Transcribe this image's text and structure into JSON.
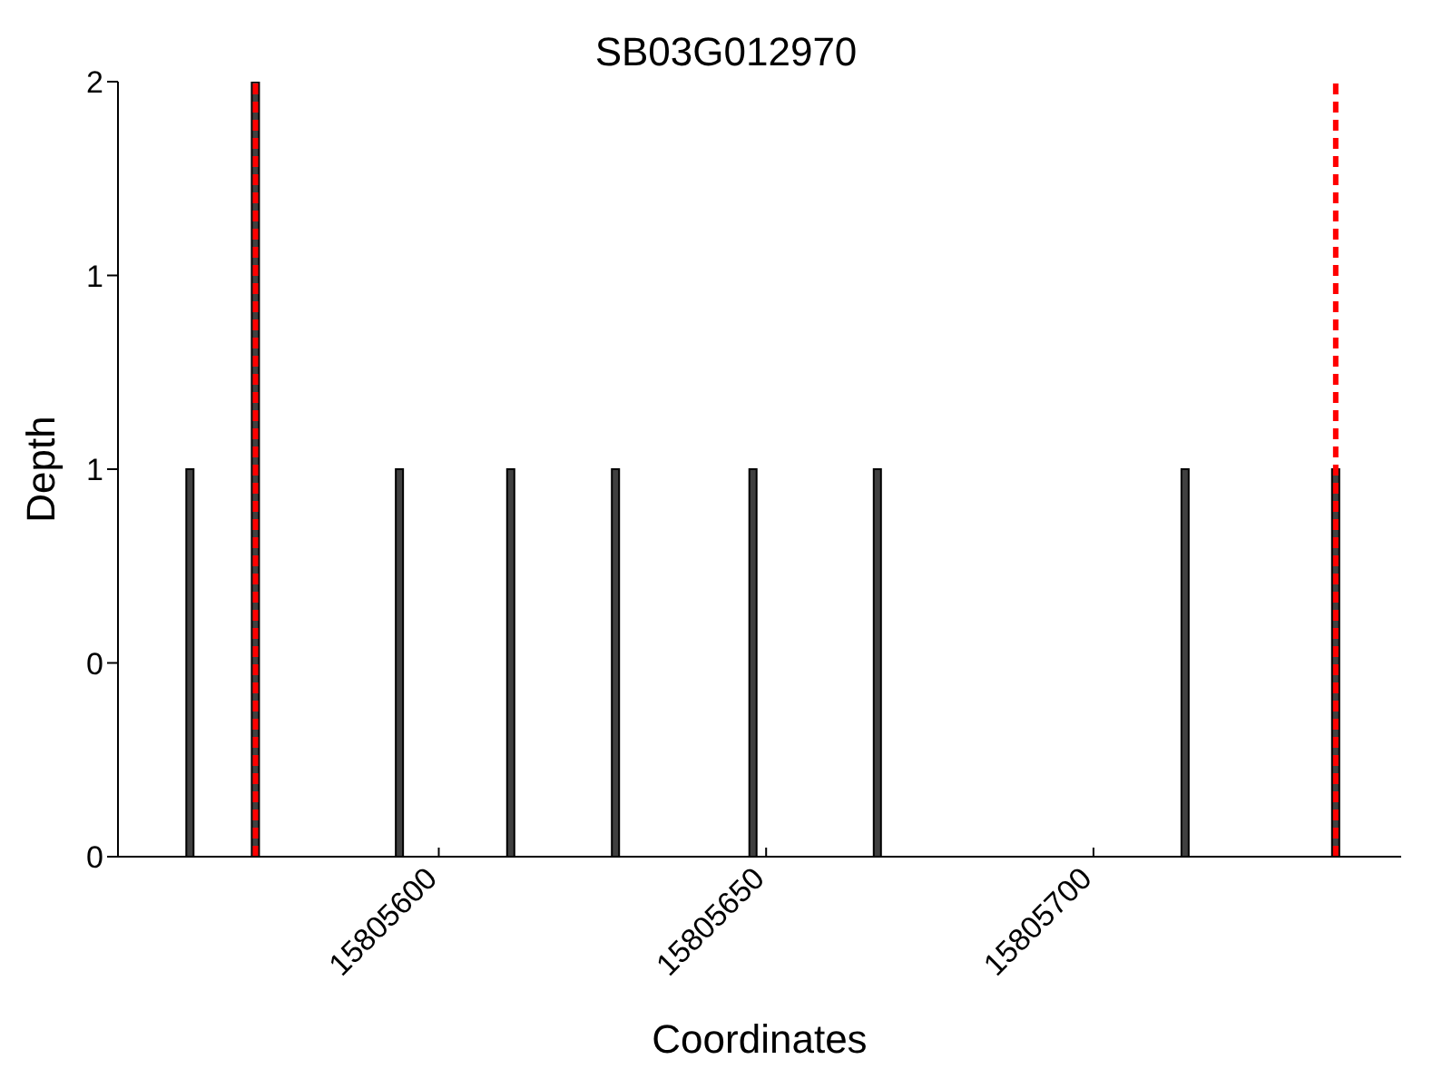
{
  "chart_data": {
    "type": "bar",
    "title": "SB03G012970",
    "xlabel": "Coordinates",
    "ylabel": "Depth",
    "x": [
      15805562,
      15805572,
      15805594,
      15805611,
      15805627,
      15805648,
      15805667,
      15805714,
      15805737
    ],
    "values": [
      1,
      2,
      1,
      1,
      1,
      1,
      1,
      1,
      1
    ],
    "color": "#404040",
    "xlim": [
      15805551,
      15805747
    ],
    "xticks": [
      15805600,
      15805650,
      15805700
    ],
    "ylim": [
      0,
      2
    ],
    "yticks": [
      0,
      {
        "value": 0.5,
        "label": "0"
      },
      1,
      {
        "value": 1.5,
        "label": "1"
      },
      2
    ],
    "ref_lines": [
      {
        "axis": "x",
        "value": 15805572,
        "color": "#ff0000",
        "line_style": "dashed"
      },
      {
        "axis": "x",
        "value": 15805737,
        "color": "#ff0000",
        "line_style": "dashed"
      }
    ],
    "grid": false
  }
}
